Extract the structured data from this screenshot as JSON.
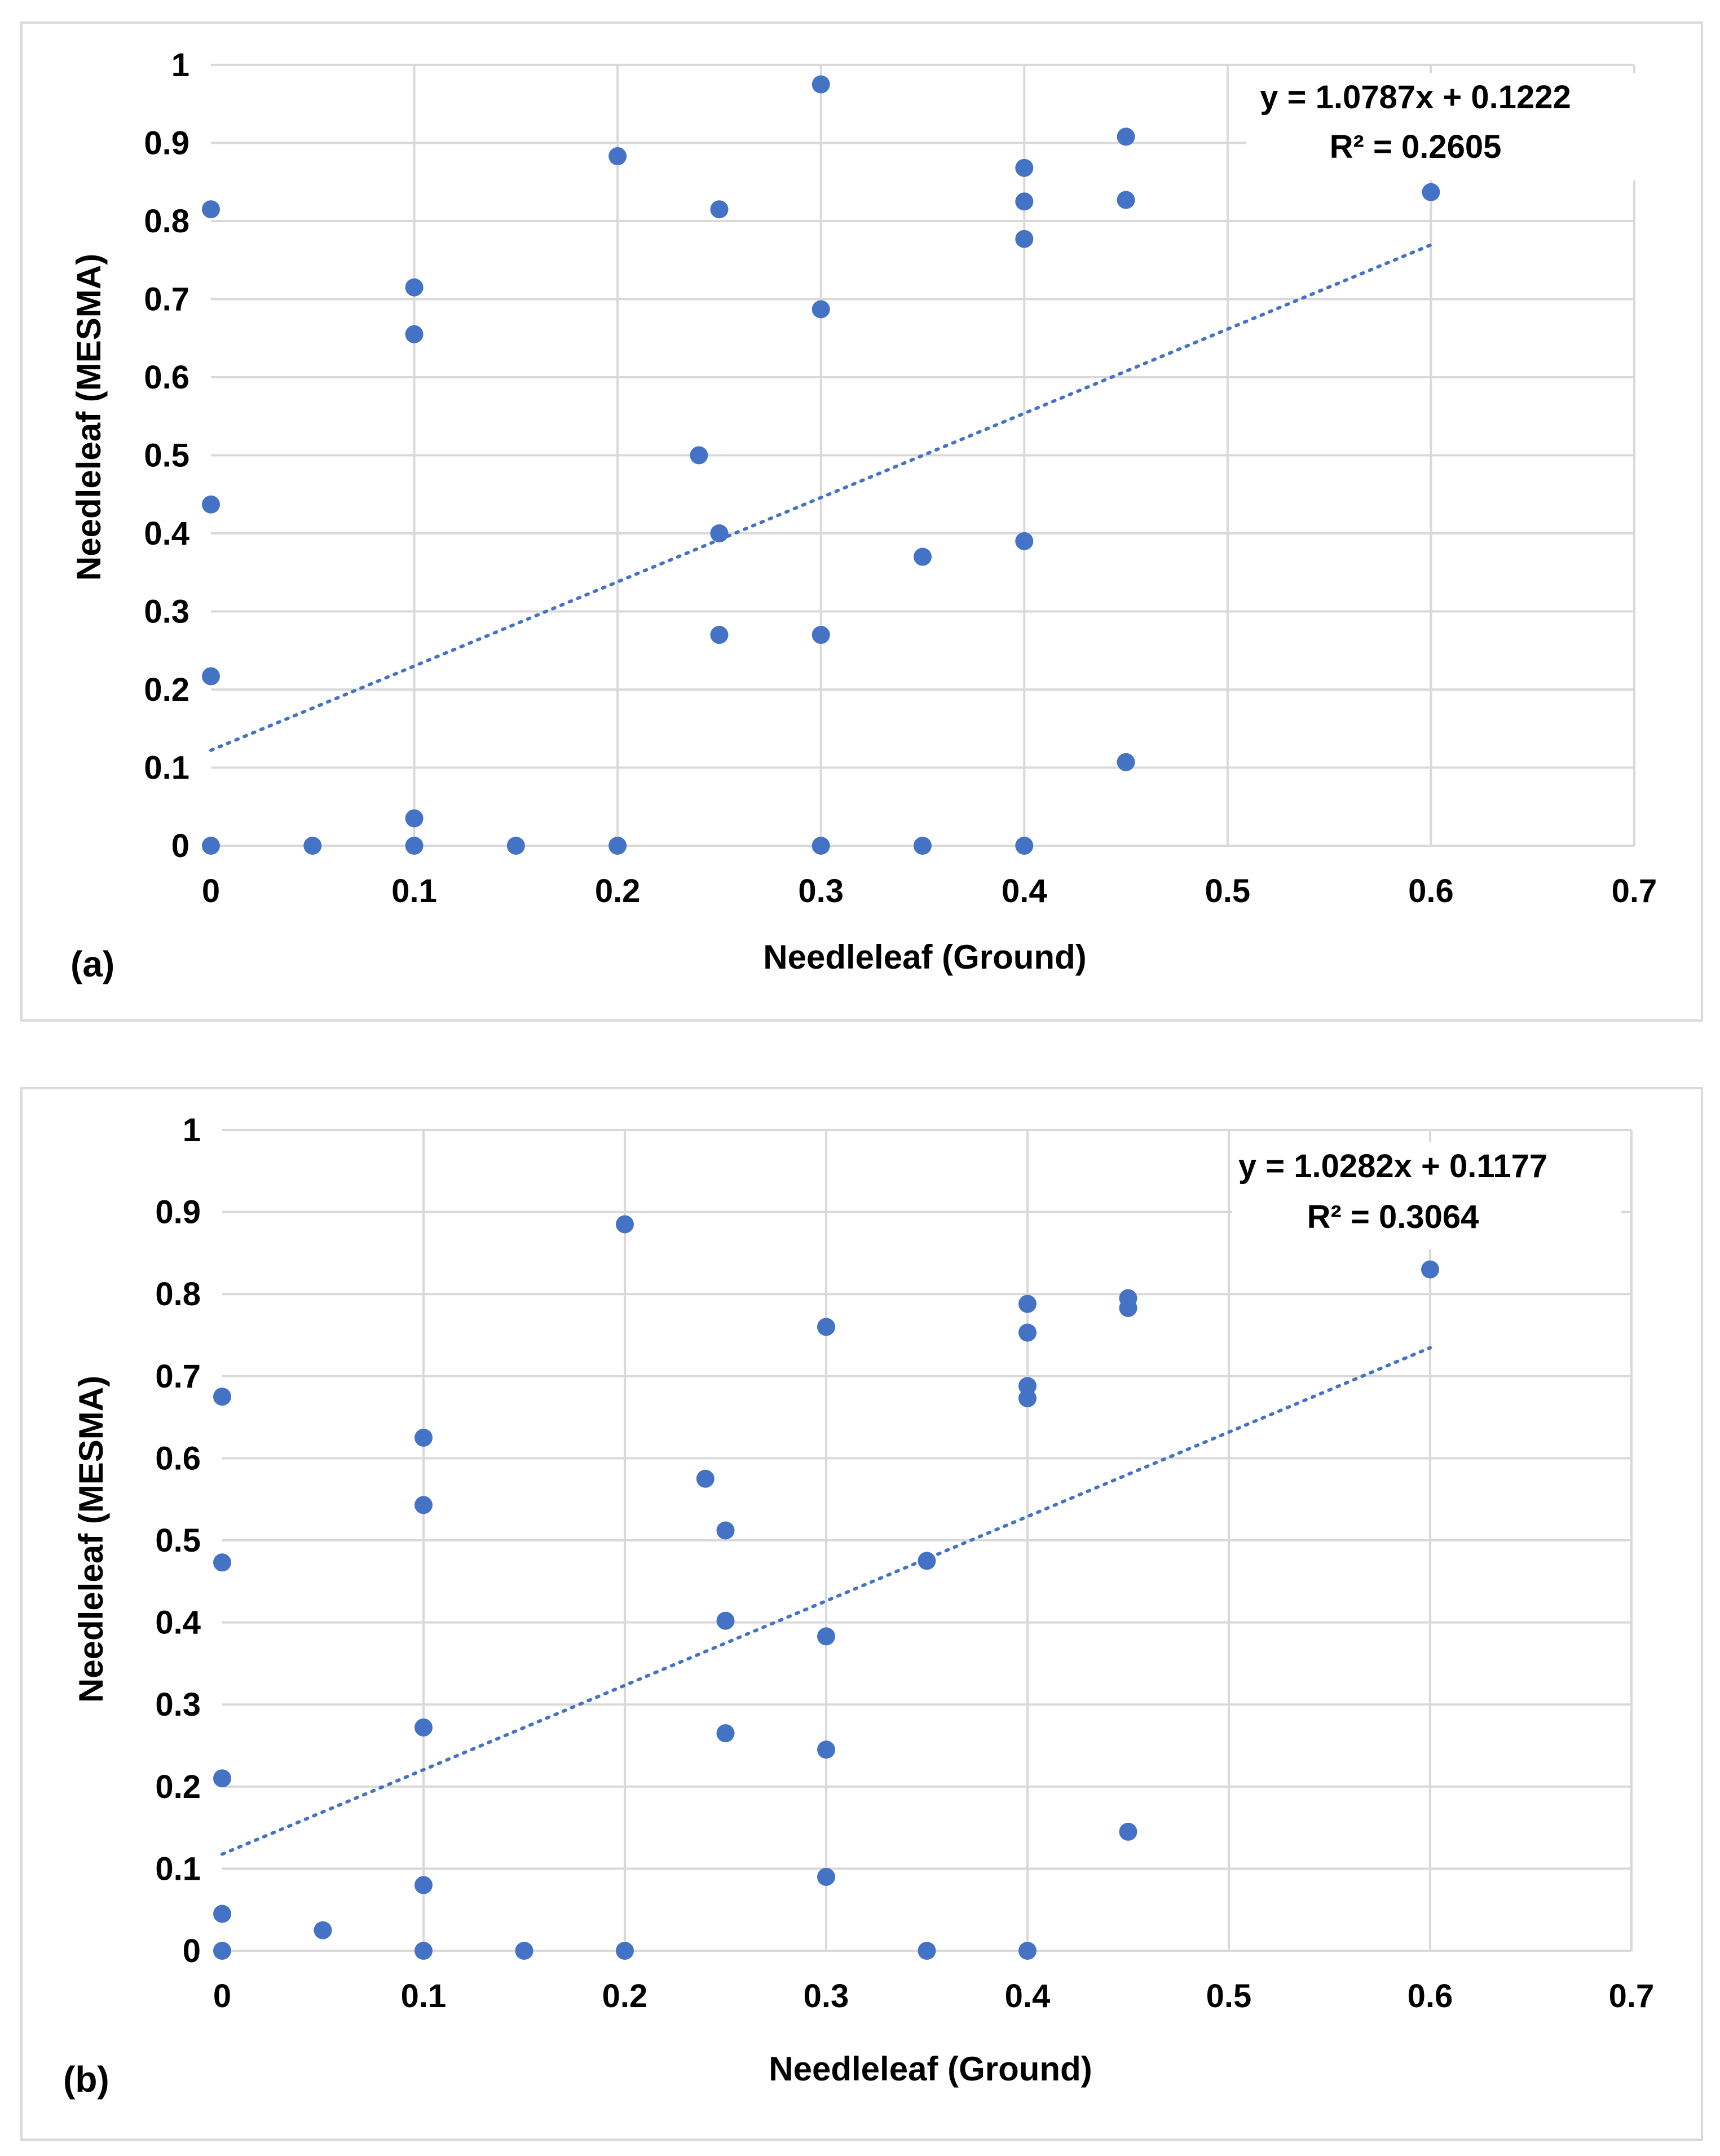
{
  "colors": {
    "marker": "#4472c4",
    "trend": "#4472c4",
    "grid": "#d9d9d9"
  },
  "chart_data": [
    {
      "type": "scatter",
      "panel_label": "(a)",
      "xlabel": "Needleleaf (Ground)",
      "ylabel": "Needleleaf (MESMA)",
      "xlim": [
        0,
        0.7
      ],
      "ylim": [
        0,
        1
      ],
      "x_ticks": [
        "0",
        "0.1",
        "0.2",
        "0.3",
        "0.4",
        "0.5",
        "0.6",
        "0.7"
      ],
      "y_ticks": [
        "0",
        "0.1",
        "0.2",
        "0.3",
        "0.4",
        "0.5",
        "0.6",
        "0.7",
        "0.8",
        "0.9",
        "1"
      ],
      "equation": "y = 1.0787x + 0.1222",
      "r_squared": "R² = 0.2605",
      "trendline": {
        "slope": 1.0787,
        "intercept": 0.1222,
        "x_range": [
          0,
          0.6
        ]
      },
      "points": [
        [
          0,
          0.815
        ],
        [
          0,
          0.437
        ],
        [
          0,
          0.217
        ],
        [
          0,
          0.0
        ],
        [
          0.05,
          0.0
        ],
        [
          0.1,
          0.715
        ],
        [
          0.1,
          0.655
        ],
        [
          0.1,
          0.035
        ],
        [
          0.1,
          0.0
        ],
        [
          0.15,
          0.0
        ],
        [
          0.2,
          0.883
        ],
        [
          0.2,
          0.0
        ],
        [
          0.24,
          0.5
        ],
        [
          0.25,
          0.815
        ],
        [
          0.25,
          0.4
        ],
        [
          0.25,
          0.27
        ],
        [
          0.3,
          0.975
        ],
        [
          0.3,
          0.687
        ],
        [
          0.3,
          0.27
        ],
        [
          0.3,
          0.0
        ],
        [
          0.35,
          0.37
        ],
        [
          0.35,
          0.0
        ],
        [
          0.4,
          0.868
        ],
        [
          0.4,
          0.825
        ],
        [
          0.4,
          0.777
        ],
        [
          0.4,
          0.39
        ],
        [
          0.4,
          0.0
        ],
        [
          0.45,
          0.908
        ],
        [
          0.45,
          0.827
        ],
        [
          0.45,
          0.107
        ],
        [
          0.6,
          0.837
        ]
      ]
    },
    {
      "type": "scatter",
      "panel_label": "(b)",
      "xlabel": "Needleleaf (Ground)",
      "ylabel": "Needleleaf (MESMA)",
      "xlim": [
        0,
        0.7
      ],
      "ylim": [
        0,
        1
      ],
      "x_ticks": [
        "0",
        "0.1",
        "0.2",
        "0.3",
        "0.4",
        "0.5",
        "0.6",
        "0.7"
      ],
      "y_ticks": [
        "0",
        "0.1",
        "0.2",
        "0.3",
        "0.4",
        "0.5",
        "0.6",
        "0.7",
        "0.8",
        "0.9",
        "1"
      ],
      "equation": "y = 1.0282x + 0.1177",
      "r_squared": "R² = 0.3064",
      "trendline": {
        "slope": 1.0282,
        "intercept": 0.1177,
        "x_range": [
          0,
          0.6
        ]
      },
      "points": [
        [
          0,
          0.675
        ],
        [
          0,
          0.473
        ],
        [
          0,
          0.21
        ],
        [
          0,
          0.045
        ],
        [
          0,
          0.0
        ],
        [
          0.05,
          0.025
        ],
        [
          0.1,
          0.625
        ],
        [
          0.1,
          0.543
        ],
        [
          0.1,
          0.272
        ],
        [
          0.1,
          0.08
        ],
        [
          0.1,
          0.0
        ],
        [
          0.15,
          0.0
        ],
        [
          0.2,
          0.885
        ],
        [
          0.2,
          0.0
        ],
        [
          0.24,
          0.575
        ],
        [
          0.25,
          0.512
        ],
        [
          0.25,
          0.402
        ],
        [
          0.25,
          0.265
        ],
        [
          0.3,
          0.76
        ],
        [
          0.3,
          0.383
        ],
        [
          0.3,
          0.245
        ],
        [
          0.3,
          0.09
        ],
        [
          0.35,
          0.475
        ],
        [
          0.35,
          0.0
        ],
        [
          0.4,
          0.788
        ],
        [
          0.4,
          0.753
        ],
        [
          0.4,
          0.688
        ],
        [
          0.4,
          0.673
        ],
        [
          0.4,
          0.0
        ],
        [
          0.45,
          0.795
        ],
        [
          0.45,
          0.783
        ],
        [
          0.45,
          0.145
        ],
        [
          0.6,
          0.83
        ]
      ]
    }
  ]
}
